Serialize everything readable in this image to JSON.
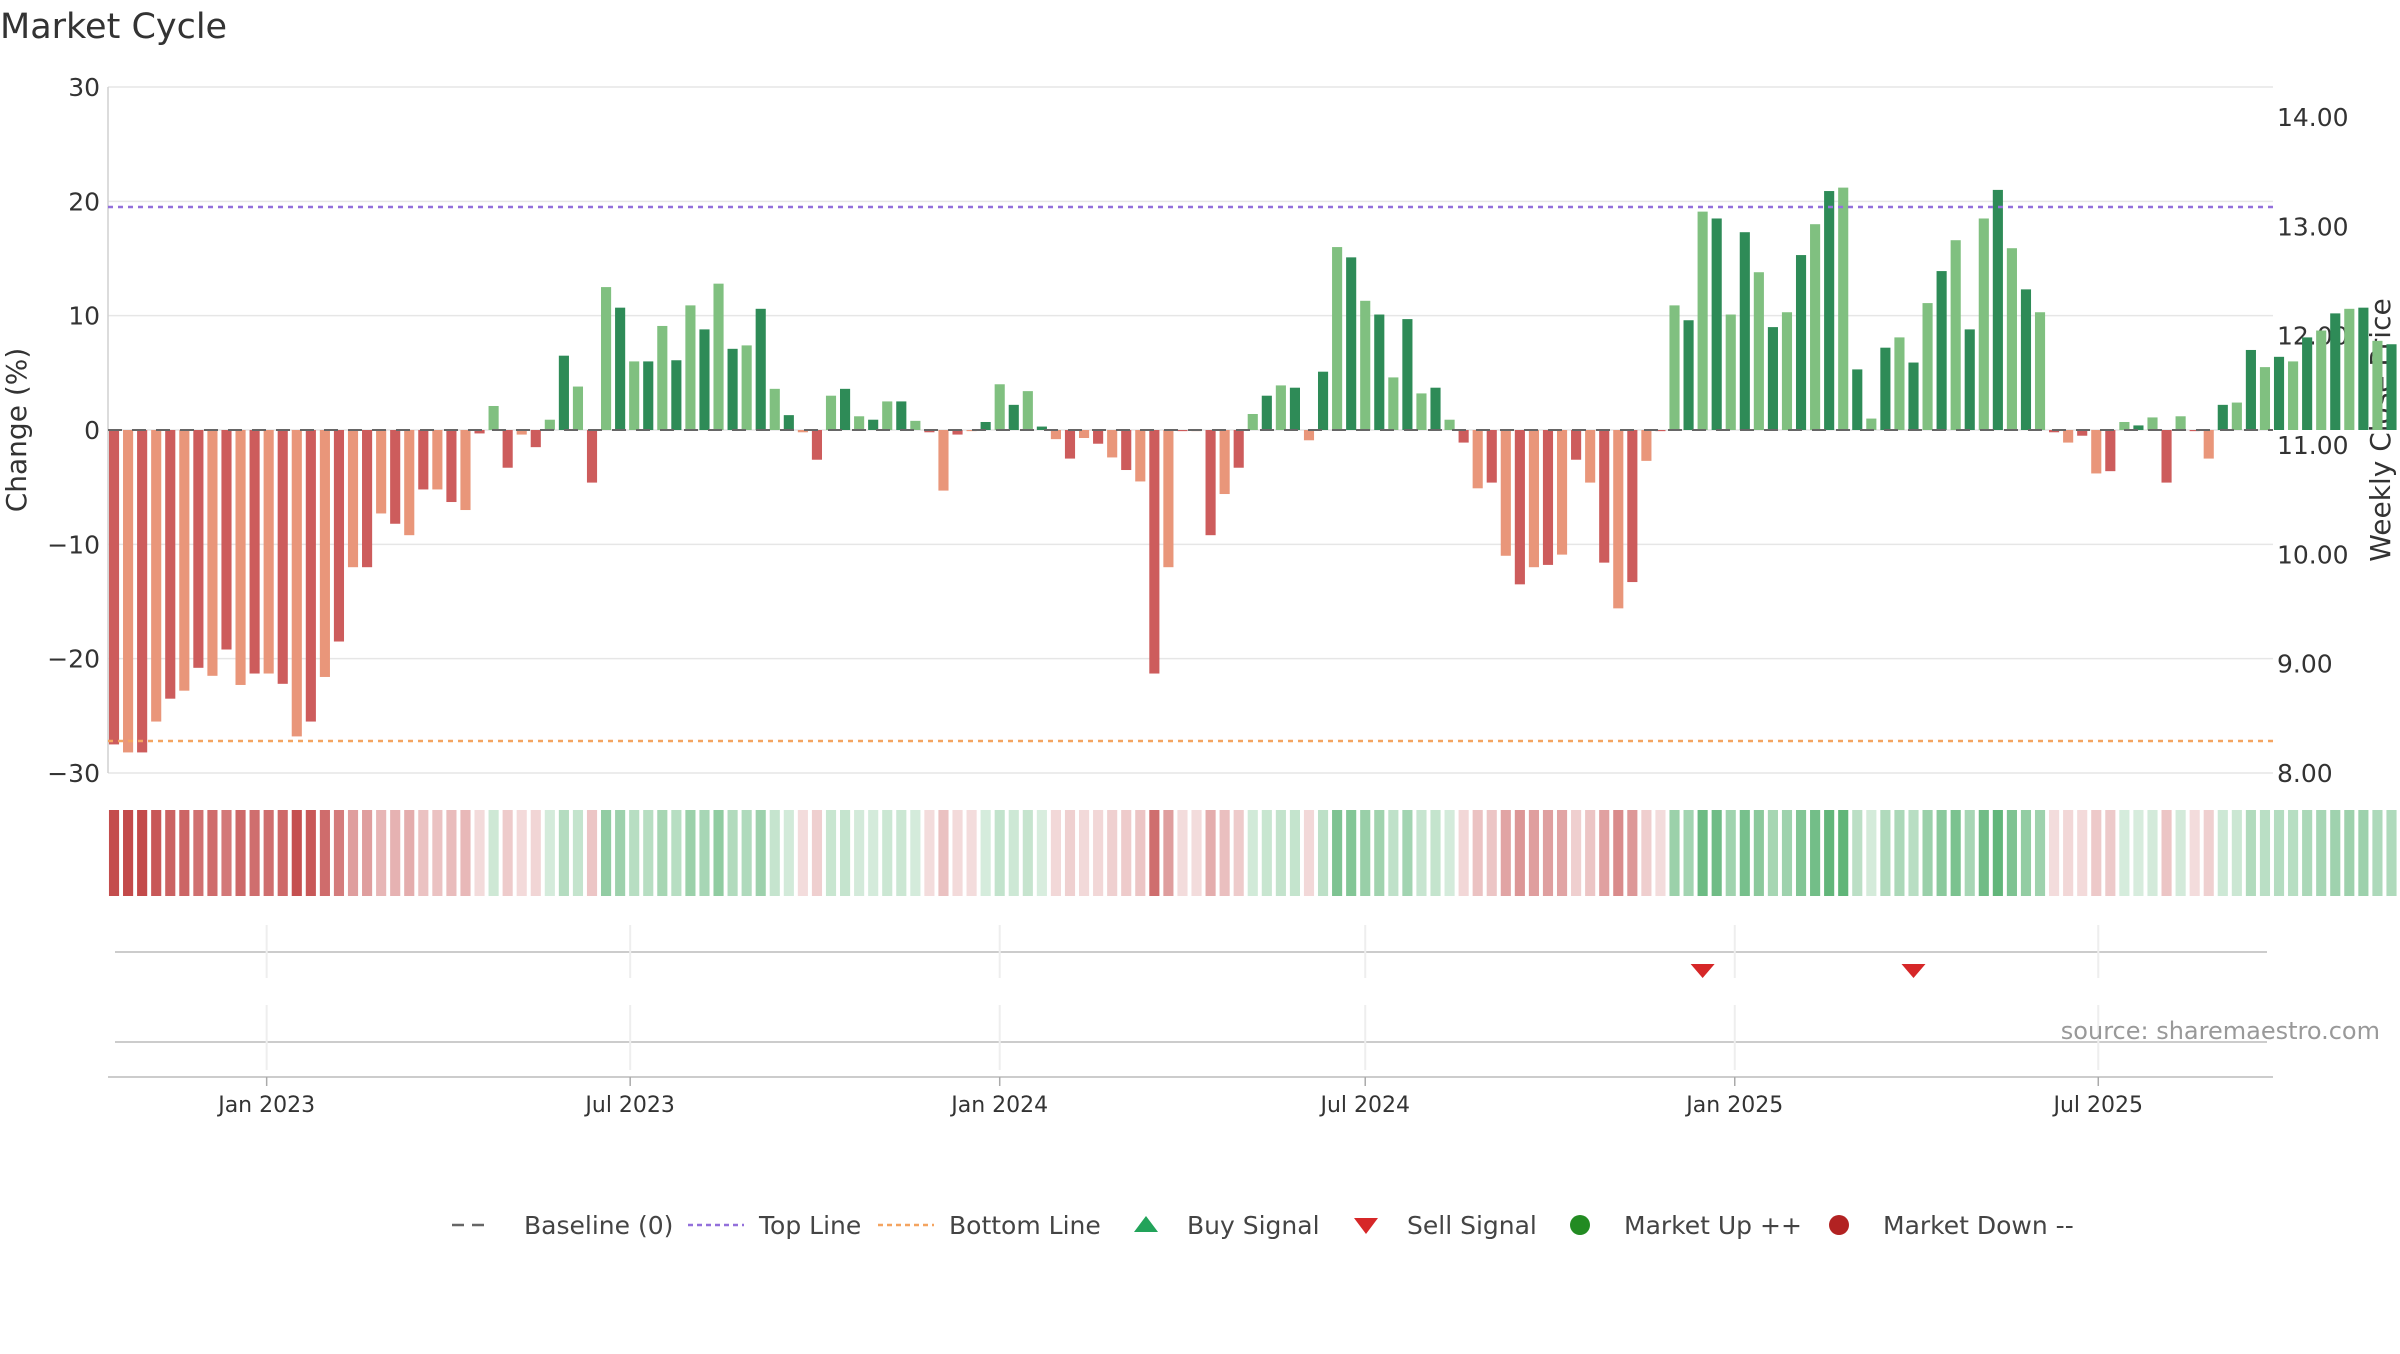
{
  "title": "Market Cycle",
  "source": "source: sharemaestro.com",
  "colors": {
    "strong_up": "#2e8b57",
    "mild_up": "#80c080",
    "strong_down": "#cd5c5c",
    "mild_down": "#e9967a",
    "top_line": "#9370db",
    "bottom_line": "#f4a460",
    "baseline": "#666666",
    "buy_signal": "#22a35a",
    "sell_signal": "#d62728",
    "market_up": "#228b22",
    "market_down": "#b22222"
  },
  "legend": [
    {
      "label": "Baseline (0)",
      "symbol": "dash-line",
      "color": "#666666"
    },
    {
      "label": "Top Line",
      "symbol": "dot-line",
      "color": "#9370db"
    },
    {
      "label": "Bottom Line",
      "symbol": "dot-line",
      "color": "#f4a460"
    },
    {
      "label": "Buy Signal",
      "symbol": "triangle-up",
      "color": "#22a35a"
    },
    {
      "label": "Sell Signal",
      "symbol": "triangle-down",
      "color": "#d62728"
    },
    {
      "label": "Market Up ++",
      "symbol": "circle",
      "color": "#228b22"
    },
    {
      "label": "Market Down --",
      "symbol": "circle",
      "color": "#b22222"
    }
  ],
  "chart_data": {
    "type": "bar",
    "title": "Market Cycle",
    "ylabel": "Change (%)",
    "y2label": "Weekly Close Price",
    "ylim": [
      -30,
      30
    ],
    "y_ticks": [
      30,
      20,
      10,
      0,
      -10,
      -20,
      -30
    ],
    "y_tick_labels": [
      "30",
      "20",
      "10",
      "0",
      "−10",
      "−20",
      "−30"
    ],
    "y2lim": [
      8.0,
      14.0
    ],
    "y2_ticks": [
      14.0,
      13.0,
      12.0,
      11.0,
      10.0,
      9.0,
      8.0
    ],
    "y2_tick_labels": [
      "14.00",
      "13.00",
      "12.00",
      "11.00",
      "10.00",
      "9.00",
      "8.00"
    ],
    "x_range": [
      "2022-10-14",
      "2025-09-26"
    ],
    "x_ticks": [
      {
        "date": "2023-01-01",
        "label": "Jan 2023"
      },
      {
        "date": "2023-07-01",
        "label": "Jul 2023"
      },
      {
        "date": "2024-01-01",
        "label": "Jan 2024"
      },
      {
        "date": "2024-07-01",
        "label": "Jul 2024"
      },
      {
        "date": "2025-01-01",
        "label": "Jan 2025"
      },
      {
        "date": "2025-07-01",
        "label": "Jul 2025"
      }
    ],
    "first_week": "2022-10-17",
    "top_line": 19.5,
    "bottom_line": -27.2,
    "baseline": 0,
    "grid": true,
    "values": [
      -27.5,
      -28.2,
      -28.2,
      -25.5,
      -23.5,
      -22.8,
      -20.8,
      -21.5,
      -19.2,
      -22.3,
      -21.3,
      -21.3,
      -22.2,
      -26.8,
      -25.5,
      -21.6,
      -18.5,
      -12,
      -12,
      -7.3,
      -8.2,
      -9.2,
      -5.2,
      -5.2,
      -6.3,
      -7,
      -0.3,
      2.1,
      -3.3,
      -0.4,
      -1.5,
      0.9,
      6.5,
      3.8,
      -4.6,
      12.5,
      10.7,
      6,
      6,
      9.1,
      6.1,
      10.9,
      8.8,
      12.8,
      7.1,
      7.4,
      10.6,
      3.6,
      1.3,
      -0.2,
      -2.6,
      3,
      3.6,
      1.2,
      0.9,
      2.5,
      2.5,
      0.8,
      -0.2,
      -5.3,
      -0.4,
      -0.1,
      0.7,
      4,
      2.2,
      3.4,
      0.3,
      -0.8,
      -2.5,
      -0.7,
      -1.2,
      -2.4,
      -3.5,
      -4.5,
      -21.3,
      -12,
      -0.1,
      -0.1,
      -9.2,
      -5.6,
      -3.3,
      1.4,
      3,
      3.9,
      3.7,
      -0.9,
      5.1,
      16,
      15.1,
      11.3,
      10.1,
      4.6,
      9.7,
      3.2,
      3.7,
      0.9,
      -1.1,
      -5.1,
      -4.6,
      -11,
      -13.5,
      -12,
      -11.8,
      -10.9,
      -2.6,
      -4.6,
      -11.6,
      -15.6,
      -13.3,
      -2.7,
      -0.1,
      10.9,
      9.6,
      19.1,
      18.5,
      10.1,
      17.3,
      13.8,
      9,
      10.3,
      15.3,
      18,
      20.9,
      21.2,
      5.3,
      1,
      7.2,
      8.1,
      5.9,
      11.1,
      13.9,
      16.6,
      8.8,
      18.5,
      21,
      15.9,
      12.3,
      10.3,
      -0.2,
      -1.1,
      -0.5,
      -3.8,
      -3.6,
      0.7,
      0.4,
      1.1,
      -4.6,
      1.2,
      -0.1,
      -2.5,
      2.2,
      2.4,
      7,
      5.5,
      6.4,
      6,
      8.1,
      8.7,
      10.2,
      10.6,
      10.7,
      7.8,
      7.5
    ],
    "sell_signals": [
      "2024-12-16",
      "2025-03-31"
    ],
    "buy_signals": [],
    "market_up": [],
    "market_down": []
  }
}
